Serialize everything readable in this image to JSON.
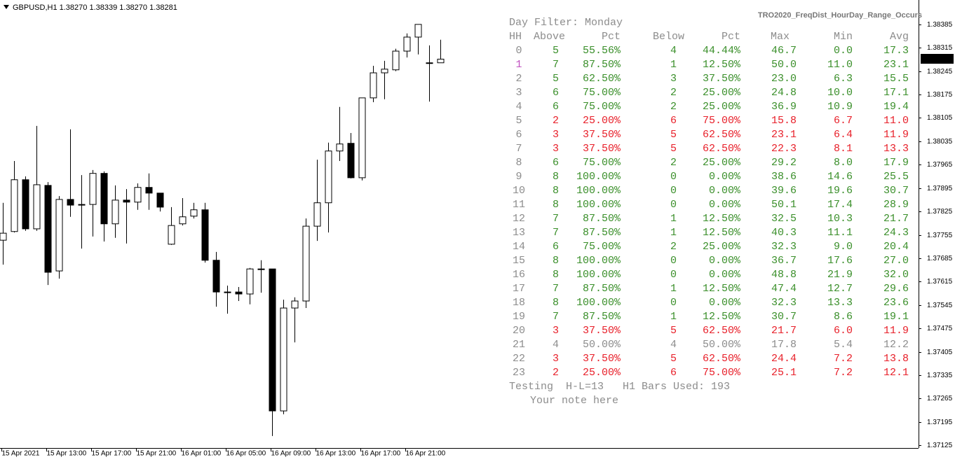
{
  "chart_data": {
    "type": "candlestick",
    "title": "GBPUSD,H1  1.38270 1.38339 1.38270 1.38281",
    "categories": [
      "15 Apr 2021",
      null,
      null,
      null,
      "15 Apr 13:00",
      null,
      null,
      null,
      "15 Apr 17:00",
      null,
      null,
      null,
      "15 Apr 21:00",
      null,
      null,
      null,
      "16 Apr 01:00",
      null,
      null,
      null,
      "16 Apr 05:00",
      null,
      null,
      null,
      "16 Apr 09:00",
      null,
      null,
      null,
      "16 Apr 13:00",
      null,
      null,
      null,
      "16 Apr 17:00",
      null,
      null,
      null,
      "16 Apr 21:00",
      null,
      null,
      null
    ],
    "open": [
      1.37739,
      1.37765,
      1.3792,
      1.37773,
      1.37903,
      1.37647,
      1.37861,
      1.37846,
      1.37846,
      1.37939,
      1.37788,
      1.37859,
      1.37853,
      1.37897,
      1.3788,
      1.37727,
      1.37788,
      1.37811,
      1.3783,
      1.37679,
      1.37584,
      1.37584,
      1.37578,
      1.37653,
      1.37653,
      1.37228,
      1.37536,
      1.37557,
      1.37781,
      1.37851,
      1.38006,
      1.38029,
      1.37926,
      1.38165,
      1.3824,
      1.38249,
      1.38305,
      1.38347,
      1.3827,
      1.3827
    ],
    "high": [
      1.37851,
      1.37976,
      1.3793,
      1.38081,
      1.37913,
      1.37871,
      1.38071,
      1.37934,
      1.37949,
      1.37945,
      1.37903,
      1.37892,
      1.37909,
      1.37939,
      1.3788,
      1.37838,
      1.37865,
      1.37851,
      1.37851,
      1.37704,
      1.37603,
      1.37599,
      1.37656,
      1.37679,
      1.37653,
      1.37561,
      1.37568,
      1.37804,
      1.3798,
      1.38031,
      1.38138,
      1.3806,
      1.38165,
      1.38261,
      1.38276,
      1.38312,
      1.38358,
      1.38385,
      1.38322,
      1.38339
    ],
    "low": [
      1.37666,
      1.37762,
      1.37767,
      1.37767,
      1.37605,
      1.37624,
      1.37809,
      1.37714,
      1.3775,
      1.37735,
      1.37746,
      1.37729,
      1.3783,
      1.3783,
      1.37825,
      1.37725,
      1.37783,
      1.37804,
      1.37672,
      1.3754,
      1.37519,
      1.37557,
      1.37547,
      1.37582,
      1.37153,
      1.37218,
      1.37433,
      1.37536,
      1.37737,
      1.37762,
      1.37976,
      1.37924,
      1.37918,
      1.38152,
      1.38161,
      1.38245,
      1.38286,
      1.38295,
      1.38154,
      1.3827
    ],
    "close": [
      1.3776,
      1.3792,
      1.37773,
      1.37905,
      1.37643,
      1.37861,
      1.37844,
      1.37846,
      1.37939,
      1.37788,
      1.37859,
      1.37853,
      1.37897,
      1.3788,
      1.37838,
      1.37783,
      1.37809,
      1.3783,
      1.37679,
      1.37584,
      1.37584,
      1.37578,
      1.37653,
      1.37653,
      1.37228,
      1.37536,
      1.37557,
      1.37781,
      1.37851,
      1.38006,
      1.38027,
      1.37926,
      1.38165,
      1.3824,
      1.38251,
      1.38305,
      1.38347,
      1.38385,
      1.38268,
      1.38281
    ],
    "ylim": [
      1.37117,
      1.38458
    ],
    "yticks": [
      1.38385,
      1.38315,
      1.38245,
      1.38175,
      1.38105,
      1.38035,
      1.37965,
      1.37895,
      1.37825,
      1.37755,
      1.37685,
      1.37615,
      1.37545,
      1.37475,
      1.37405,
      1.37335,
      1.37265,
      1.37195,
      1.37125
    ],
    "current_price": 1.38281,
    "up_color": "#ffffff",
    "down_color": "#000000"
  },
  "indicator": {
    "name": "TRO2020_FreqDist_HourDay_Range_Occurs",
    "filter": "Day Filter: Monday",
    "headers": [
      "HH",
      "Above",
      "Pct",
      "Below",
      "Pct",
      "Max",
      "Min",
      "Avg"
    ],
    "hh_color": "#8c8c8c",
    "rows": [
      {
        "cells": [
          "0",
          "5",
          "55.56%",
          "4",
          "44.44%",
          "46.7",
          "0.0",
          "17.3"
        ],
        "color": "#3a8f2a"
      },
      {
        "cells": [
          "1",
          "7",
          "87.50%",
          "1",
          "12.50%",
          "50.0",
          "11.0",
          "23.1"
        ],
        "color": "#3a8f2a",
        "hh_color": "#c050c0"
      },
      {
        "cells": [
          "2",
          "5",
          "62.50%",
          "3",
          "37.50%",
          "23.0",
          "6.3",
          "15.5"
        ],
        "color": "#3a8f2a"
      },
      {
        "cells": [
          "3",
          "6",
          "75.00%",
          "2",
          "25.00%",
          "24.8",
          "10.0",
          "17.1"
        ],
        "color": "#3a8f2a"
      },
      {
        "cells": [
          "4",
          "6",
          "75.00%",
          "2",
          "25.00%",
          "36.9",
          "10.9",
          "19.4"
        ],
        "color": "#3a8f2a"
      },
      {
        "cells": [
          "5",
          "2",
          "25.00%",
          "6",
          "75.00%",
          "15.8",
          "6.7",
          "11.0"
        ],
        "color": "#e8202a"
      },
      {
        "cells": [
          "6",
          "3",
          "37.50%",
          "5",
          "62.50%",
          "23.1",
          "6.4",
          "11.9"
        ],
        "color": "#e8202a"
      },
      {
        "cells": [
          "7",
          "3",
          "37.50%",
          "5",
          "62.50%",
          "22.3",
          "8.1",
          "13.3"
        ],
        "color": "#e8202a"
      },
      {
        "cells": [
          "8",
          "6",
          "75.00%",
          "2",
          "25.00%",
          "29.2",
          "8.0",
          "17.9"
        ],
        "color": "#3a8f2a"
      },
      {
        "cells": [
          "9",
          "8",
          "100.00%",
          "0",
          "0.00%",
          "38.6",
          "14.6",
          "25.5"
        ],
        "color": "#3a8f2a"
      },
      {
        "cells": [
          "10",
          "8",
          "100.00%",
          "0",
          "0.00%",
          "39.6",
          "19.6",
          "30.7"
        ],
        "color": "#3a8f2a"
      },
      {
        "cells": [
          "11",
          "8",
          "100.00%",
          "0",
          "0.00%",
          "50.1",
          "17.4",
          "28.9"
        ],
        "color": "#3a8f2a"
      },
      {
        "cells": [
          "12",
          "7",
          "87.50%",
          "1",
          "12.50%",
          "32.5",
          "10.3",
          "21.7"
        ],
        "color": "#3a8f2a"
      },
      {
        "cells": [
          "13",
          "7",
          "87.50%",
          "1",
          "12.50%",
          "40.3",
          "11.1",
          "24.3"
        ],
        "color": "#3a8f2a"
      },
      {
        "cells": [
          "14",
          "6",
          "75.00%",
          "2",
          "25.00%",
          "32.3",
          "9.0",
          "20.4"
        ],
        "color": "#3a8f2a"
      },
      {
        "cells": [
          "15",
          "8",
          "100.00%",
          "0",
          "0.00%",
          "36.7",
          "17.6",
          "27.0"
        ],
        "color": "#3a8f2a"
      },
      {
        "cells": [
          "16",
          "8",
          "100.00%",
          "0",
          "0.00%",
          "48.8",
          "21.9",
          "32.0"
        ],
        "color": "#3a8f2a"
      },
      {
        "cells": [
          "17",
          "7",
          "87.50%",
          "1",
          "12.50%",
          "47.4",
          "12.7",
          "29.6"
        ],
        "color": "#3a8f2a"
      },
      {
        "cells": [
          "18",
          "8",
          "100.00%",
          "0",
          "0.00%",
          "32.3",
          "13.3",
          "23.6"
        ],
        "color": "#3a8f2a"
      },
      {
        "cells": [
          "19",
          "7",
          "87.50%",
          "1",
          "12.50%",
          "30.7",
          "8.6",
          "19.1"
        ],
        "color": "#3a8f2a"
      },
      {
        "cells": [
          "20",
          "3",
          "37.50%",
          "5",
          "62.50%",
          "21.7",
          "6.0",
          "11.9"
        ],
        "color": "#e8202a"
      },
      {
        "cells": [
          "21",
          "4",
          "50.00%",
          "4",
          "50.00%",
          "17.8",
          "5.4",
          "12.2"
        ],
        "color": "#8c8c8c"
      },
      {
        "cells": [
          "22",
          "3",
          "37.50%",
          "5",
          "62.50%",
          "24.4",
          "7.2",
          "13.8"
        ],
        "color": "#e8202a"
      },
      {
        "cells": [
          "23",
          "2",
          "25.00%",
          "6",
          "75.00%",
          "25.1",
          "7.2",
          "12.1"
        ],
        "color": "#e8202a"
      }
    ],
    "footer": [
      "Testing  H-L=13   H1 Bars Used: 193",
      "Your note here"
    ]
  }
}
